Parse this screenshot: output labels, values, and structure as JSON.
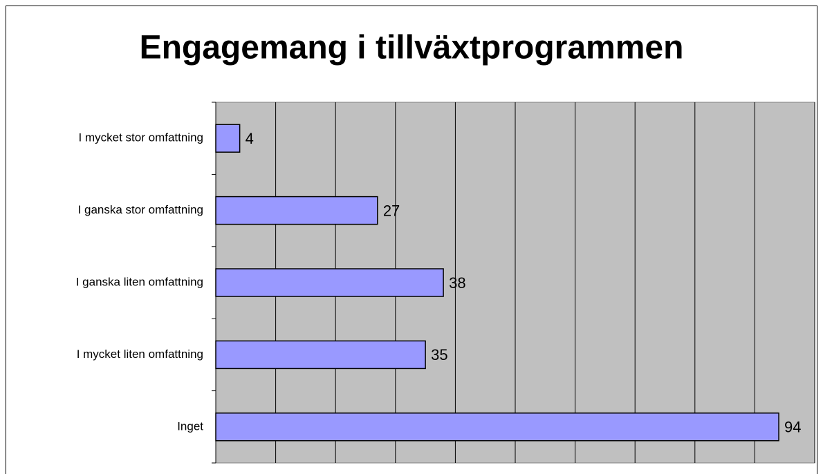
{
  "chart_data": {
    "type": "bar",
    "orientation": "horizontal",
    "title": "Engagemang i tillväxtprogrammen",
    "categories": [
      "I mycket stor omfattning",
      "I ganska stor omfattning",
      "I ganska liten omfattning",
      "I mycket liten omfattning",
      "Inget"
    ],
    "values": [
      4,
      27,
      38,
      35,
      94
    ],
    "color": "#9999ff",
    "xlim": [
      0,
      100
    ],
    "xticks": [
      0,
      10,
      20,
      30,
      40,
      50,
      60,
      70,
      80,
      90,
      100
    ],
    "grid": true
  }
}
